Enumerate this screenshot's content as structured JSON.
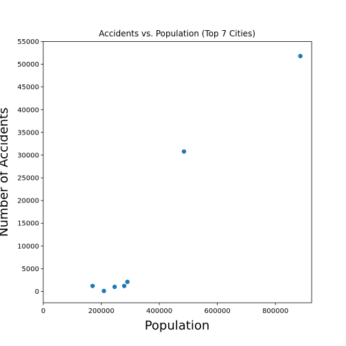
{
  "chart_data": {
    "type": "scatter",
    "title": "Accidents vs. Population (Top 7 Cities)",
    "xlabel": "Population",
    "ylabel": "Number of Accidents",
    "xlim": [
      0,
      925000
    ],
    "ylim": [
      -2500,
      55000
    ],
    "x_ticks": [
      0,
      200000,
      400000,
      600000,
      800000
    ],
    "y_ticks": [
      0,
      5000,
      10000,
      15000,
      20000,
      25000,
      30000,
      35000,
      40000,
      45000,
      50000,
      55000
    ],
    "x_tick_labels": [
      "0",
      "200000",
      "400000",
      "600000",
      "800000"
    ],
    "y_tick_labels": [
      "0",
      "5000",
      "10000",
      "15000",
      "20000",
      "25000",
      "30000",
      "35000",
      "40000",
      "45000",
      "50000",
      "55000"
    ],
    "grid": false,
    "marker_color": "#1f77b4",
    "points": [
      {
        "x": 170000,
        "y": 1200
      },
      {
        "x": 209000,
        "y": 100
      },
      {
        "x": 246000,
        "y": 1000
      },
      {
        "x": 279000,
        "y": 1200
      },
      {
        "x": 290000,
        "y": 2100
      },
      {
        "x": 485000,
        "y": 30800
      },
      {
        "x": 886000,
        "y": 51800
      }
    ]
  }
}
